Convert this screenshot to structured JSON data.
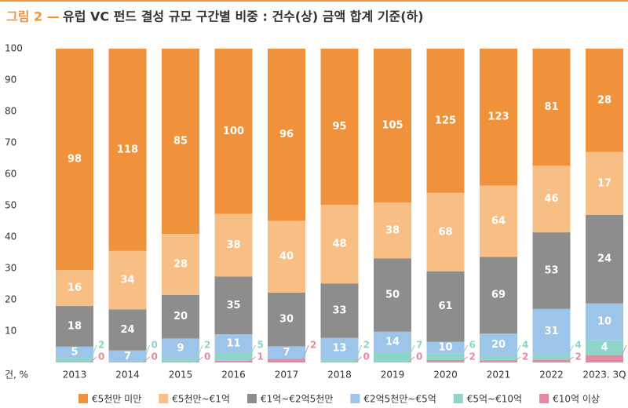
{
  "chart_data": {
    "type": "bar",
    "stacking": "percent",
    "figure_label": "그림 2 —",
    "title": "유럽 VC 펀드 결성 규모 구간별 비중 : 건수(상) 금액 합계 기준(하)",
    "axis_unit": "건, %",
    "categories": [
      "2013",
      "2014",
      "2015",
      "2016",
      "2017",
      "2018",
      "2019",
      "2020",
      "2021",
      "2022",
      "2023. 3Q"
    ],
    "ylim": [
      0,
      100
    ],
    "yticks": [
      10,
      20,
      30,
      40,
      50,
      60,
      70,
      80,
      90,
      100
    ],
    "series": [
      {
        "name": "€10억 이상",
        "color": "#e28ba2",
        "values": [
          0,
          0,
          0,
          1,
          2,
          0,
          0,
          2,
          2,
          2,
          2
        ]
      },
      {
        "name": "€5억~€10억",
        "color": "#8fd4c9",
        "values": [
          2,
          0,
          2,
          5,
          null,
          2,
          7,
          6,
          4,
          4,
          4
        ]
      },
      {
        "name": "€2억5천만~€5억",
        "color": "#9dc5ea",
        "values": [
          5,
          7,
          9,
          11,
          7,
          13,
          14,
          10,
          20,
          31,
          10
        ]
      },
      {
        "name": "€1억~€2억5천만",
        "color": "#8d8d8d",
        "values": [
          18,
          24,
          20,
          35,
          30,
          33,
          50,
          61,
          69,
          53,
          24
        ]
      },
      {
        "name": "€5천만~€1억",
        "color": "#f7bf86",
        "values": [
          16,
          34,
          28,
          38,
          40,
          48,
          38,
          68,
          64,
          46,
          17
        ]
      },
      {
        "name": "€5천만 미만",
        "color": "#f0923b",
        "values": [
          98,
          118,
          85,
          100,
          96,
          95,
          105,
          125,
          123,
          81,
          28
        ]
      }
    ]
  }
}
